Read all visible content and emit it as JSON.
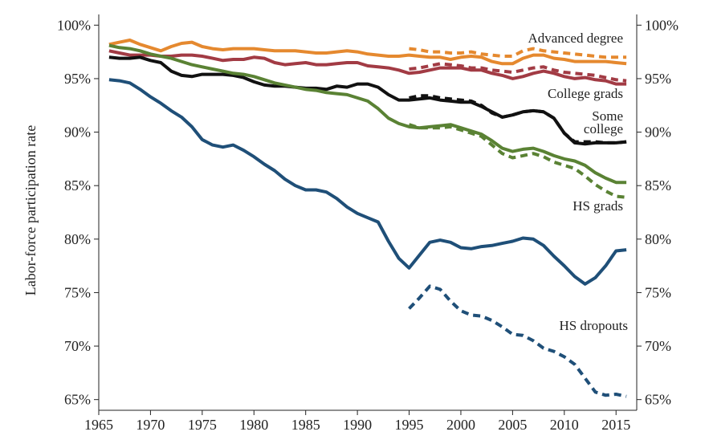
{
  "chart_data": {
    "type": "line",
    "ylabel": "Labor-force participation rate",
    "xlabel": "",
    "xlim": [
      1965,
      2017
    ],
    "ylim": [
      64,
      101
    ],
    "x_ticks": [
      1965,
      1970,
      1975,
      1980,
      1985,
      1990,
      1995,
      2000,
      2005,
      2010,
      2015
    ],
    "y_ticks": [
      65,
      70,
      75,
      80,
      85,
      90,
      95,
      100
    ],
    "y_tick_labels": [
      "65%",
      "70%",
      "75%",
      "80%",
      "85%",
      "90%",
      "95%",
      "100%"
    ],
    "grid": false,
    "legend": "none (series labelled directly on plot)",
    "series": [
      {
        "name": "Advanced degree",
        "color": "#e5892f",
        "style": "solid",
        "x": [
          1966,
          1967,
          1968,
          1969,
          1970,
          1971,
          1972,
          1973,
          1974,
          1975,
          1976,
          1977,
          1978,
          1979,
          1980,
          1981,
          1982,
          1983,
          1984,
          1985,
          1986,
          1987,
          1988,
          1989,
          1990,
          1991,
          1992,
          1993,
          1994,
          1995,
          1996,
          1997,
          1998,
          1999,
          2000,
          2001,
          2002,
          2003,
          2004,
          2005,
          2006,
          2007,
          2008,
          2009,
          2010,
          2011,
          2012,
          2013,
          2014,
          2015,
          2016
        ],
        "y": [
          98.2,
          98.4,
          98.6,
          98.2,
          97.9,
          97.6,
          98.0,
          98.3,
          98.4,
          98.0,
          97.8,
          97.7,
          97.8,
          97.8,
          97.8,
          97.7,
          97.6,
          97.6,
          97.6,
          97.5,
          97.4,
          97.4,
          97.5,
          97.6,
          97.5,
          97.3,
          97.2,
          97.1,
          97.1,
          97.2,
          97.1,
          97.0,
          97.0,
          96.8,
          97.0,
          97.1,
          97.0,
          96.6,
          96.4,
          96.4,
          96.9,
          97.2,
          97.2,
          96.9,
          96.8,
          96.6,
          96.6,
          96.6,
          96.6,
          96.5,
          96.4
        ]
      },
      {
        "name": "Advanced degree dashed",
        "color": "#e5892f",
        "style": "dashed",
        "x": [
          1995,
          1996,
          1997,
          1998,
          1999,
          2000,
          2001,
          2002,
          2003,
          2004,
          2005,
          2006,
          2007,
          2008,
          2009,
          2010,
          2011,
          2012,
          2013,
          2014,
          2015,
          2016
        ],
        "y": [
          97.8,
          97.7,
          97.5,
          97.5,
          97.4,
          97.4,
          97.5,
          97.3,
          97.2,
          97.1,
          97.1,
          97.6,
          97.8,
          97.6,
          97.5,
          97.4,
          97.3,
          97.2,
          97.1,
          97.0,
          97.0,
          97.0
        ]
      },
      {
        "name": "College grads",
        "color": "#a23b44",
        "style": "solid",
        "x": [
          1966,
          1967,
          1968,
          1969,
          1970,
          1971,
          1972,
          1973,
          1974,
          1975,
          1976,
          1977,
          1978,
          1979,
          1980,
          1981,
          1982,
          1983,
          1984,
          1985,
          1986,
          1987,
          1988,
          1989,
          1990,
          1991,
          1992,
          1993,
          1994,
          1995,
          1996,
          1997,
          1998,
          1999,
          2000,
          2001,
          2002,
          2003,
          2004,
          2005,
          2006,
          2007,
          2008,
          2009,
          2010,
          2011,
          2012,
          2013,
          2014,
          2015,
          2016
        ],
        "y": [
          97.6,
          97.4,
          97.2,
          97.2,
          97.2,
          97.1,
          97.1,
          97.2,
          97.2,
          97.1,
          96.9,
          96.7,
          96.8,
          96.8,
          97.0,
          96.9,
          96.5,
          96.3,
          96.4,
          96.5,
          96.3,
          96.3,
          96.4,
          96.5,
          96.5,
          96.2,
          96.1,
          96.0,
          95.8,
          95.5,
          95.6,
          95.8,
          96.0,
          96.0,
          96.0,
          95.8,
          95.8,
          95.5,
          95.3,
          95.0,
          95.2,
          95.5,
          95.7,
          95.5,
          95.2,
          95.0,
          95.1,
          94.9,
          94.8,
          94.5,
          94.5
        ]
      },
      {
        "name": "College grads dashed",
        "color": "#a23b44",
        "style": "dashed",
        "x": [
          1995,
          1996,
          1997,
          1998,
          1999,
          2000,
          2001,
          2002,
          2003,
          2004,
          2005,
          2006,
          2007,
          2008,
          2009,
          2010,
          2011,
          2012,
          2013,
          2014,
          2015,
          2016
        ],
        "y": [
          95.9,
          96.0,
          96.2,
          96.4,
          96.3,
          96.2,
          96.0,
          96.0,
          95.8,
          95.7,
          95.6,
          95.8,
          96.0,
          96.1,
          95.8,
          95.6,
          95.5,
          95.4,
          95.3,
          95.1,
          94.9,
          94.8
        ]
      },
      {
        "name": "Some college",
        "color": "#111111",
        "style": "solid",
        "x": [
          1966,
          1967,
          1968,
          1969,
          1970,
          1971,
          1972,
          1973,
          1974,
          1975,
          1976,
          1977,
          1978,
          1979,
          1980,
          1981,
          1982,
          1983,
          1984,
          1985,
          1986,
          1987,
          1988,
          1989,
          1990,
          1991,
          1992,
          1993,
          1994,
          1995,
          1996,
          1997,
          1998,
          1999,
          2000,
          2001,
          2002,
          2003,
          2004,
          2005,
          2006,
          2007,
          2008,
          2009,
          2010,
          2011,
          2012,
          2013,
          2014,
          2015,
          2016
        ],
        "y": [
          97.0,
          96.9,
          96.9,
          97.0,
          96.7,
          96.5,
          95.7,
          95.3,
          95.2,
          95.4,
          95.4,
          95.4,
          95.3,
          95.1,
          94.7,
          94.4,
          94.3,
          94.3,
          94.2,
          94.1,
          94.1,
          94.0,
          94.3,
          94.2,
          94.5,
          94.5,
          94.2,
          93.5,
          93.0,
          93.0,
          93.1,
          93.2,
          93.0,
          92.9,
          92.8,
          92.8,
          92.4,
          91.9,
          91.4,
          91.6,
          91.9,
          92.0,
          91.9,
          91.3,
          89.9,
          89.0,
          88.9,
          89.0,
          89.0,
          89.0,
          89.1
        ]
      },
      {
        "name": "Some college dashed",
        "color": "#111111",
        "style": "dashed",
        "x": [
          1995,
          1996,
          1997,
          1998,
          1999,
          2000,
          2001,
          2002,
          2003,
          2004,
          2005,
          2006,
          2007,
          2008,
          2009,
          2010,
          2011,
          2012,
          2013,
          2014,
          2015,
          2016
        ],
        "y": [
          93.2,
          93.4,
          93.4,
          93.2,
          93.1,
          93.0,
          92.9,
          92.5,
          91.8,
          91.4,
          91.6,
          91.9,
          92.0,
          91.9,
          91.3,
          89.9,
          89.1,
          89.1,
          89.1,
          89.0,
          89.0,
          89.1
        ]
      },
      {
        "name": "HS grads",
        "color": "#5a8234",
        "style": "solid",
        "x": [
          1966,
          1967,
          1968,
          1969,
          1970,
          1971,
          1972,
          1973,
          1974,
          1975,
          1976,
          1977,
          1978,
          1979,
          1980,
          1981,
          1982,
          1983,
          1984,
          1985,
          1986,
          1987,
          1988,
          1989,
          1990,
          1991,
          1992,
          1993,
          1994,
          1995,
          1996,
          1997,
          1998,
          1999,
          2000,
          2001,
          2002,
          2003,
          2004,
          2005,
          2006,
          2007,
          2008,
          2009,
          2010,
          2011,
          2012,
          2013,
          2014,
          2015,
          2016
        ],
        "y": [
          98.1,
          97.9,
          97.8,
          97.6,
          97.3,
          97.1,
          96.9,
          96.6,
          96.3,
          96.1,
          95.9,
          95.7,
          95.5,
          95.4,
          95.2,
          94.9,
          94.6,
          94.4,
          94.2,
          94.0,
          93.9,
          93.7,
          93.6,
          93.5,
          93.2,
          92.9,
          92.2,
          91.3,
          90.8,
          90.5,
          90.4,
          90.5,
          90.6,
          90.7,
          90.4,
          90.1,
          89.8,
          89.2,
          88.5,
          88.2,
          88.4,
          88.5,
          88.2,
          87.8,
          87.5,
          87.3,
          86.9,
          86.2,
          85.7,
          85.3,
          85.3
        ]
      },
      {
        "name": "HS grads dashed",
        "color": "#5a8234",
        "style": "dashed",
        "x": [
          1995,
          1996,
          1997,
          1998,
          1999,
          2000,
          2001,
          2002,
          2003,
          2004,
          2005,
          2006,
          2007,
          2008,
          2009,
          2010,
          2011,
          2012,
          2013,
          2014,
          2015,
          2016
        ],
        "y": [
          90.7,
          90.4,
          90.4,
          90.4,
          90.5,
          90.2,
          89.9,
          89.6,
          88.8,
          88.0,
          87.6,
          87.8,
          88.0,
          87.7,
          87.2,
          86.9,
          86.6,
          85.9,
          85.1,
          84.5,
          84.0,
          83.9
        ]
      },
      {
        "name": "HS dropouts",
        "color": "#1f4f78",
        "style": "solid",
        "x": [
          1966,
          1967,
          1968,
          1969,
          1970,
          1971,
          1972,
          1973,
          1974,
          1975,
          1976,
          1977,
          1978,
          1979,
          1980,
          1981,
          1982,
          1983,
          1984,
          1985,
          1986,
          1987,
          1988,
          1989,
          1990,
          1991,
          1992,
          1993,
          1994,
          1995,
          1996,
          1997,
          1998,
          1999,
          2000,
          2001,
          2002,
          2003,
          2004,
          2005,
          2006,
          2007,
          2008,
          2009,
          2010,
          2011,
          2012,
          2013,
          2014,
          2015,
          2016
        ],
        "y": [
          94.9,
          94.8,
          94.6,
          94.0,
          93.3,
          92.7,
          92.0,
          91.4,
          90.5,
          89.3,
          88.8,
          88.6,
          88.8,
          88.3,
          87.7,
          87.0,
          86.4,
          85.6,
          85.0,
          84.6,
          84.6,
          84.4,
          83.8,
          83.0,
          82.4,
          82.0,
          81.6,
          79.8,
          78.2,
          77.3,
          78.5,
          79.7,
          79.9,
          79.7,
          79.2,
          79.1,
          79.3,
          79.4,
          79.6,
          79.8,
          80.1,
          80.0,
          79.4,
          78.4,
          77.5,
          76.5,
          75.8,
          76.4,
          77.5,
          78.9,
          79.0
        ]
      },
      {
        "name": "HS dropouts dashed",
        "color": "#1f4f78",
        "style": "dashed",
        "x": [
          1995,
          1996,
          1997,
          1998,
          1999,
          2000,
          2001,
          2002,
          2003,
          2004,
          2005,
          2006,
          2007,
          2008,
          2009,
          2010,
          2011,
          2012,
          2013,
          2014,
          2015,
          2016
        ],
        "y": [
          73.5,
          74.5,
          75.6,
          75.3,
          74.2,
          73.3,
          72.9,
          72.8,
          72.4,
          71.8,
          71.1,
          71.0,
          70.5,
          69.8,
          69.5,
          69.0,
          68.3,
          67.0,
          65.7,
          65.4,
          65.5,
          65.3
        ]
      }
    ],
    "annotations": [
      {
        "text": "Advanced degree",
        "series": "Advanced degree"
      },
      {
        "text": "College grads",
        "series": "College grads"
      },
      {
        "text": "Some",
        "series": "Some college"
      },
      {
        "text": "college",
        "series": "Some college"
      },
      {
        "text": "HS grads",
        "series": "HS grads"
      },
      {
        "text": "HS dropouts",
        "series": "HS dropouts"
      }
    ]
  }
}
